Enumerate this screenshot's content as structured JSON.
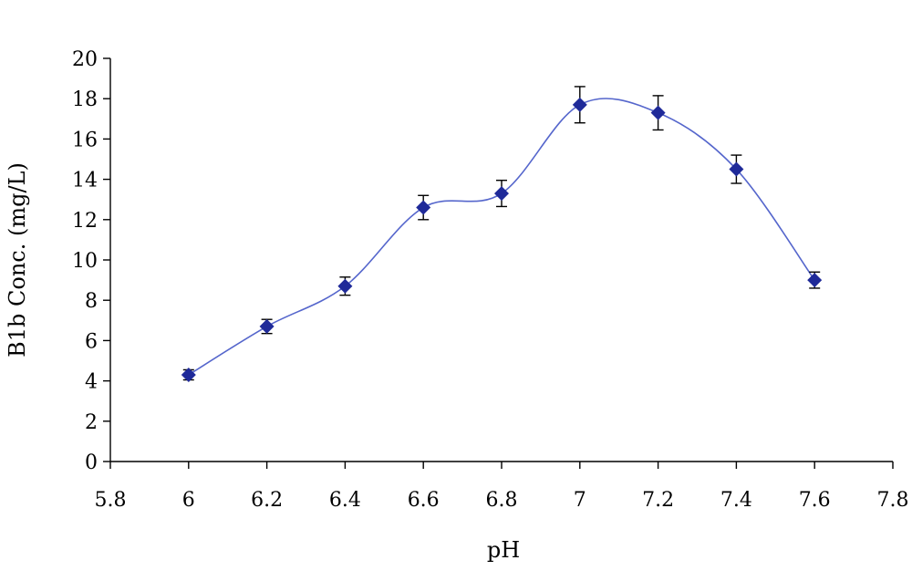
{
  "chart_data": {
    "type": "scatter",
    "title": "",
    "xlabel": "pH",
    "ylabel": "B1b Conc. (mg/L)",
    "xlim": [
      5.8,
      7.8
    ],
    "ylim": [
      0,
      20
    ],
    "x_ticks": [
      5.8,
      6,
      6.2,
      6.4,
      6.6,
      6.8,
      7,
      7.2,
      7.4,
      7.6,
      7.8
    ],
    "x_tick_labels": [
      "5.8",
      "6",
      "6.2",
      "6.4",
      "6.6",
      "6.8",
      "7",
      "7.2",
      "7.4",
      "7.6",
      "7.8"
    ],
    "y_ticks": [
      0,
      2,
      4,
      6,
      8,
      10,
      12,
      14,
      16,
      18,
      20
    ],
    "y_tick_labels": [
      "0",
      "2",
      "4",
      "6",
      "8",
      "10",
      "12",
      "14",
      "16",
      "18",
      "20"
    ],
    "grid": false,
    "legend": "none",
    "marker": "diamond",
    "line": "smooth",
    "colors": {
      "line": "#5566cc",
      "marker": "#1f2a99",
      "axis": "#000000",
      "error_bar": "#000000"
    },
    "series": [
      {
        "x": [
          6.0,
          6.2,
          6.4,
          6.6,
          6.8,
          7.0,
          7.2,
          7.4,
          7.6
        ],
        "y": [
          4.3,
          6.7,
          8.7,
          12.6,
          13.3,
          17.7,
          17.3,
          14.5,
          9.0
        ],
        "error": [
          0.25,
          0.35,
          0.45,
          0.6,
          0.65,
          0.9,
          0.85,
          0.7,
          0.4
        ]
      }
    ]
  }
}
